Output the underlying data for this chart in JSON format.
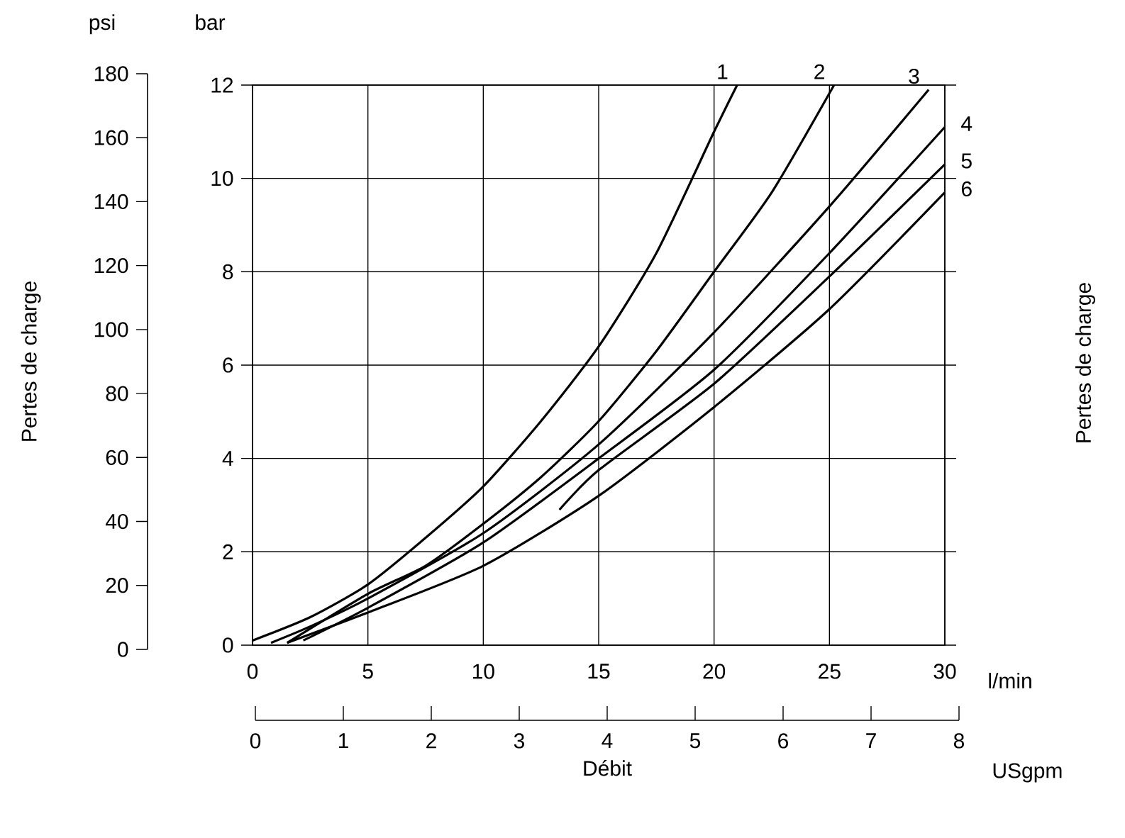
{
  "chart_data": {
    "type": "line",
    "xlabel": "Débit",
    "y2label": "Pertes de charge",
    "xlim": [
      0,
      30
    ],
    "xticks": [
      0,
      5,
      10,
      15,
      20,
      25,
      30
    ],
    "ylim": [
      0,
      12
    ],
    "yticks": [
      0,
      2,
      4,
      6,
      8,
      10,
      12
    ],
    "y2lim": [
      0,
      180
    ],
    "y2ticks": [
      0,
      20,
      40,
      60,
      80,
      100,
      120,
      140,
      160,
      180
    ],
    "x2lim": [
      0,
      8
    ],
    "x2ticks": [
      0,
      1,
      2,
      3,
      4,
      5,
      6,
      7,
      8
    ],
    "grid": true,
    "annotations": [
      "psi",
      "bar",
      "l/min",
      "USgpm",
      "Pertes de charge"
    ],
    "series": [
      {
        "name": "1",
        "color": "#000000",
        "x": [
          0,
          2.5,
          5,
          7.5,
          10,
          12.5,
          15,
          17.5,
          20,
          21
        ],
        "values": [
          0.1,
          0.6,
          1.3,
          2.3,
          3.4,
          4.8,
          6.4,
          8.4,
          11,
          12
        ]
      },
      {
        "name": "2",
        "color": "#000000",
        "x": [
          1.5,
          5,
          7.5,
          10,
          12.5,
          15,
          17.5,
          20,
          22.5,
          25.2
        ],
        "values": [
          0.05,
          1.1,
          1.7,
          2.6,
          3.6,
          4.8,
          6.3,
          8,
          9.7,
          12
        ]
      },
      {
        "name": "3",
        "color": "#000000",
        "x": [
          0.8,
          2.5,
          5,
          10,
          15,
          20,
          25,
          29.3
        ],
        "values": [
          0.05,
          0.4,
          1,
          2.4,
          4.3,
          6.7,
          9.4,
          11.9
        ]
      },
      {
        "name": "4",
        "color": "#000000",
        "x": [
          2.2,
          5,
          10,
          15,
          20,
          25,
          30
        ],
        "values": [
          0.1,
          0.8,
          2.2,
          4,
          5.9,
          8.4,
          11.1
        ]
      },
      {
        "name": "5",
        "color": "#000000",
        "x": [
          13.3,
          15,
          20,
          25,
          30
        ],
        "values": [
          2.9,
          3.75,
          5.6,
          7.9,
          10.3
        ]
      },
      {
        "name": "6",
        "color": "#000000",
        "x": [
          1.5,
          5,
          10,
          15,
          20,
          25,
          30
        ],
        "values": [
          0.05,
          0.7,
          1.7,
          3.2,
          5.1,
          7.2,
          9.7
        ]
      }
    ]
  }
}
